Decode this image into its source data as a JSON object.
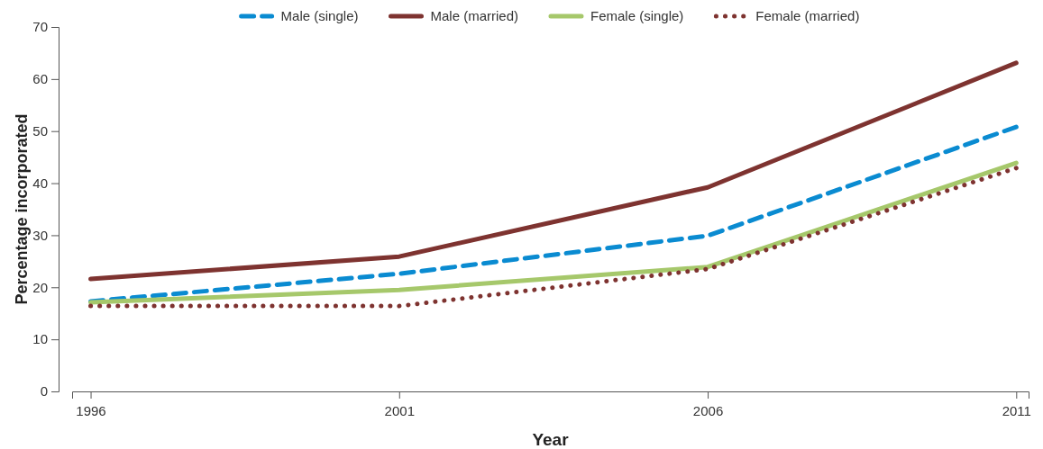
{
  "chart_data": {
    "type": "line",
    "xlabel": "Year",
    "ylabel": "Percentage incorporated",
    "x": [
      1996,
      2001,
      2006,
      2011
    ],
    "xlim": [
      1995.7,
      2011.2
    ],
    "xticks": [
      1996,
      2001,
      2006,
      2011
    ],
    "ylim": [
      0,
      70
    ],
    "yticks": [
      0,
      10,
      20,
      30,
      40,
      50,
      60,
      70
    ],
    "grid": false,
    "legend": "top",
    "marker": "none",
    "series": [
      {
        "name": "Male (single)",
        "color": "#0a8bd1",
        "line_style": "dashed",
        "values": [
          17.3,
          22.6,
          29.9,
          50.8
        ]
      },
      {
        "name": "Male (married)",
        "color": "#7e3330",
        "line_style": "solid",
        "values": [
          21.6,
          25.9,
          39.2,
          63.1
        ]
      },
      {
        "name": "Female (single)",
        "color": "#a6c86b",
        "line_style": "solid",
        "values": [
          17.1,
          19.5,
          23.9,
          43.9
        ]
      },
      {
        "name": "Female (married)",
        "color": "#7e3330",
        "line_style": "dotted",
        "values": [
          16.4,
          16.4,
          23.5,
          42.9
        ]
      }
    ]
  }
}
